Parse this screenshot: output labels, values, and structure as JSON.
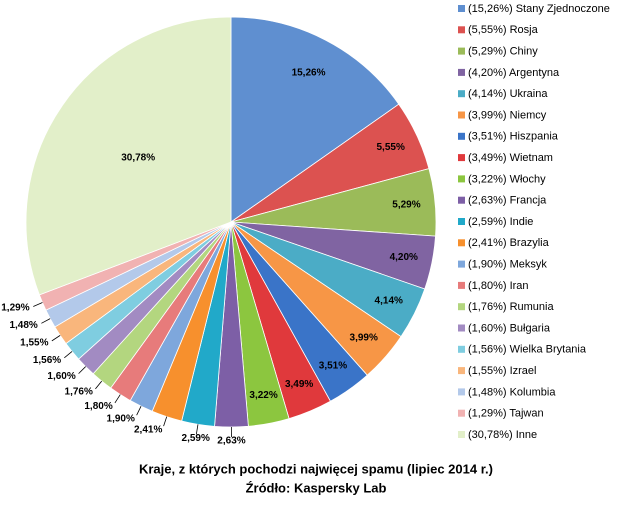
{
  "chart_data": {
    "type": "pie",
    "title": "Kraje, z których pochodzi najwięcej spamu (lipiec 2014 r.)",
    "subtitle": "Źródło: Kaspersky Lab",
    "categories": [
      "(15,26%) Stany Zjednoczone",
      "(5,55%) Rosja",
      "(5,29%) Chiny",
      "(4,20%) Argentyna",
      "(4,14%) Ukraina",
      "(3,99%) Niemcy",
      "(3,51%) Hiszpania",
      "(3,49%) Wietnam",
      "(3,22%) Włochy",
      "(2,63%) Francja",
      "(2,59%) Indie",
      "(2,41%) Brazylia",
      "(1,90%) Meksyk",
      "(1,80%) Iran",
      "(1,76%) Rumunia",
      "(1,60%) Bułgaria",
      "(1,56%) Wielka Brytania",
      "(1,55%) Izrael",
      "(1,48%) Kolumbia",
      "(1,29%) Tajwan",
      "(30,78%) Inne"
    ],
    "values": [
      15.26,
      5.55,
      5.29,
      4.2,
      4.14,
      3.99,
      3.51,
      3.49,
      3.22,
      2.63,
      2.59,
      2.41,
      1.9,
      1.8,
      1.76,
      1.6,
      1.56,
      1.55,
      1.48,
      1.29,
      30.78
    ],
    "value_labels": [
      "15,26%",
      "5,55%",
      "5,29%",
      "4,20%",
      "4,14%",
      "3,99%",
      "3,51%",
      "3,49%",
      "3,22%",
      "2,63%",
      "2,59%",
      "2,41%",
      "1,90%",
      "1,80%",
      "1,76%",
      "1,60%",
      "1,56%",
      "1,55%",
      "1,48%",
      "1,29%",
      "30,78%"
    ],
    "colors": [
      "#5f8fd0",
      "#dc5250",
      "#9bbb59",
      "#8064a2",
      "#4bacc6",
      "#f79646",
      "#3a74c8",
      "#e0393c",
      "#8cc63f",
      "#7d5fa6",
      "#21a9c9",
      "#f7902d",
      "#7ea7dc",
      "#e77b7b",
      "#b3d67f",
      "#a28bc2",
      "#7fcde0",
      "#f9b67c",
      "#b3c9ea",
      "#f1b2b2",
      "#e2efc9"
    ],
    "legend": "right"
  }
}
